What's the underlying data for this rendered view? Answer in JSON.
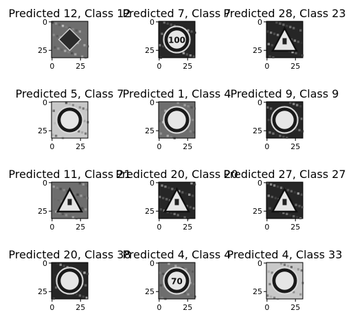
{
  "chart_data": [
    {
      "type": "image",
      "title": "Predicted 12, Class 12",
      "predicted": 12,
      "class": 12,
      "icon": "diamond-sign",
      "shade": "mid-gray",
      "xticks": [
        "0",
        "25"
      ],
      "yticks": [
        "0",
        "25"
      ]
    },
    {
      "type": "image",
      "title": "Predicted 7, Class 7",
      "predicted": 7,
      "class": 7,
      "icon": "round-sign",
      "sign_text": "100",
      "shade": "dark",
      "xticks": [
        "0",
        "25"
      ],
      "yticks": [
        "0",
        "25"
      ]
    },
    {
      "type": "image",
      "title": "Predicted 28, Class 23",
      "predicted": 28,
      "class": 23,
      "icon": "triangle-sign",
      "shade": "dark",
      "xticks": [
        "0",
        "25"
      ],
      "yticks": [
        "0",
        "25"
      ]
    },
    {
      "type": "image",
      "title": "Predicted 5, Class 7",
      "predicted": 5,
      "class": 7,
      "icon": "round-sign",
      "sign_text": "",
      "shade": "light",
      "xticks": [
        "0",
        "25"
      ],
      "yticks": [
        "0",
        "25"
      ]
    },
    {
      "type": "image",
      "title": "Predicted 1, Class 4",
      "predicted": 1,
      "class": 4,
      "icon": "round-sign",
      "sign_text": "",
      "shade": "mid-gray",
      "xticks": [
        "0",
        "25"
      ],
      "yticks": [
        "0",
        "25"
      ]
    },
    {
      "type": "image",
      "title": "Predicted 9, Class 9",
      "predicted": 9,
      "class": 9,
      "icon": "round-sign",
      "sign_text": "",
      "shade": "dark",
      "xticks": [
        "0",
        "25"
      ],
      "yticks": [
        "0",
        "25"
      ]
    },
    {
      "type": "image",
      "title": "Predicted 11, Class 21",
      "predicted": 11,
      "class": 21,
      "icon": "triangle-sign",
      "shade": "mid-gray",
      "xticks": [
        "0",
        "25"
      ],
      "yticks": [
        "0",
        "25"
      ]
    },
    {
      "type": "image",
      "title": "Predicted 20, Class 20",
      "predicted": 20,
      "class": 20,
      "icon": "triangle-sign",
      "shade": "dark",
      "xticks": [
        "0",
        "25"
      ],
      "yticks": [
        "0",
        "25"
      ]
    },
    {
      "type": "image",
      "title": "Predicted 27, Class 27",
      "predicted": 27,
      "class": 27,
      "icon": "triangle-sign",
      "shade": "dark",
      "xticks": [
        "0",
        "25"
      ],
      "yticks": [
        "0",
        "25"
      ]
    },
    {
      "type": "image",
      "title": "Predicted 20, Class 38",
      "predicted": 20,
      "class": 38,
      "icon": "round-sign",
      "sign_text": "",
      "shade": "dark",
      "xticks": [
        "0",
        "25"
      ],
      "yticks": [
        "0",
        "25"
      ]
    },
    {
      "type": "image",
      "title": "Predicted 4, Class 4",
      "predicted": 4,
      "class": 4,
      "icon": "round-sign",
      "sign_text": "70",
      "shade": "mid-gray",
      "xticks": [
        "0",
        "25"
      ],
      "yticks": [
        "0",
        "25"
      ]
    },
    {
      "type": "image",
      "title": "Predicted 4, Class 33",
      "predicted": 4,
      "class": 33,
      "icon": "round-sign",
      "sign_text": "",
      "shade": "light",
      "xticks": [
        "0",
        "25"
      ],
      "yticks": [
        "0",
        "25"
      ]
    }
  ],
  "colors": {
    "background": "#ffffff",
    "text": "#000000",
    "shades": {
      "dark": "#262626",
      "mid-gray": "#6e6e6e",
      "light": "#c8c8c8"
    }
  }
}
